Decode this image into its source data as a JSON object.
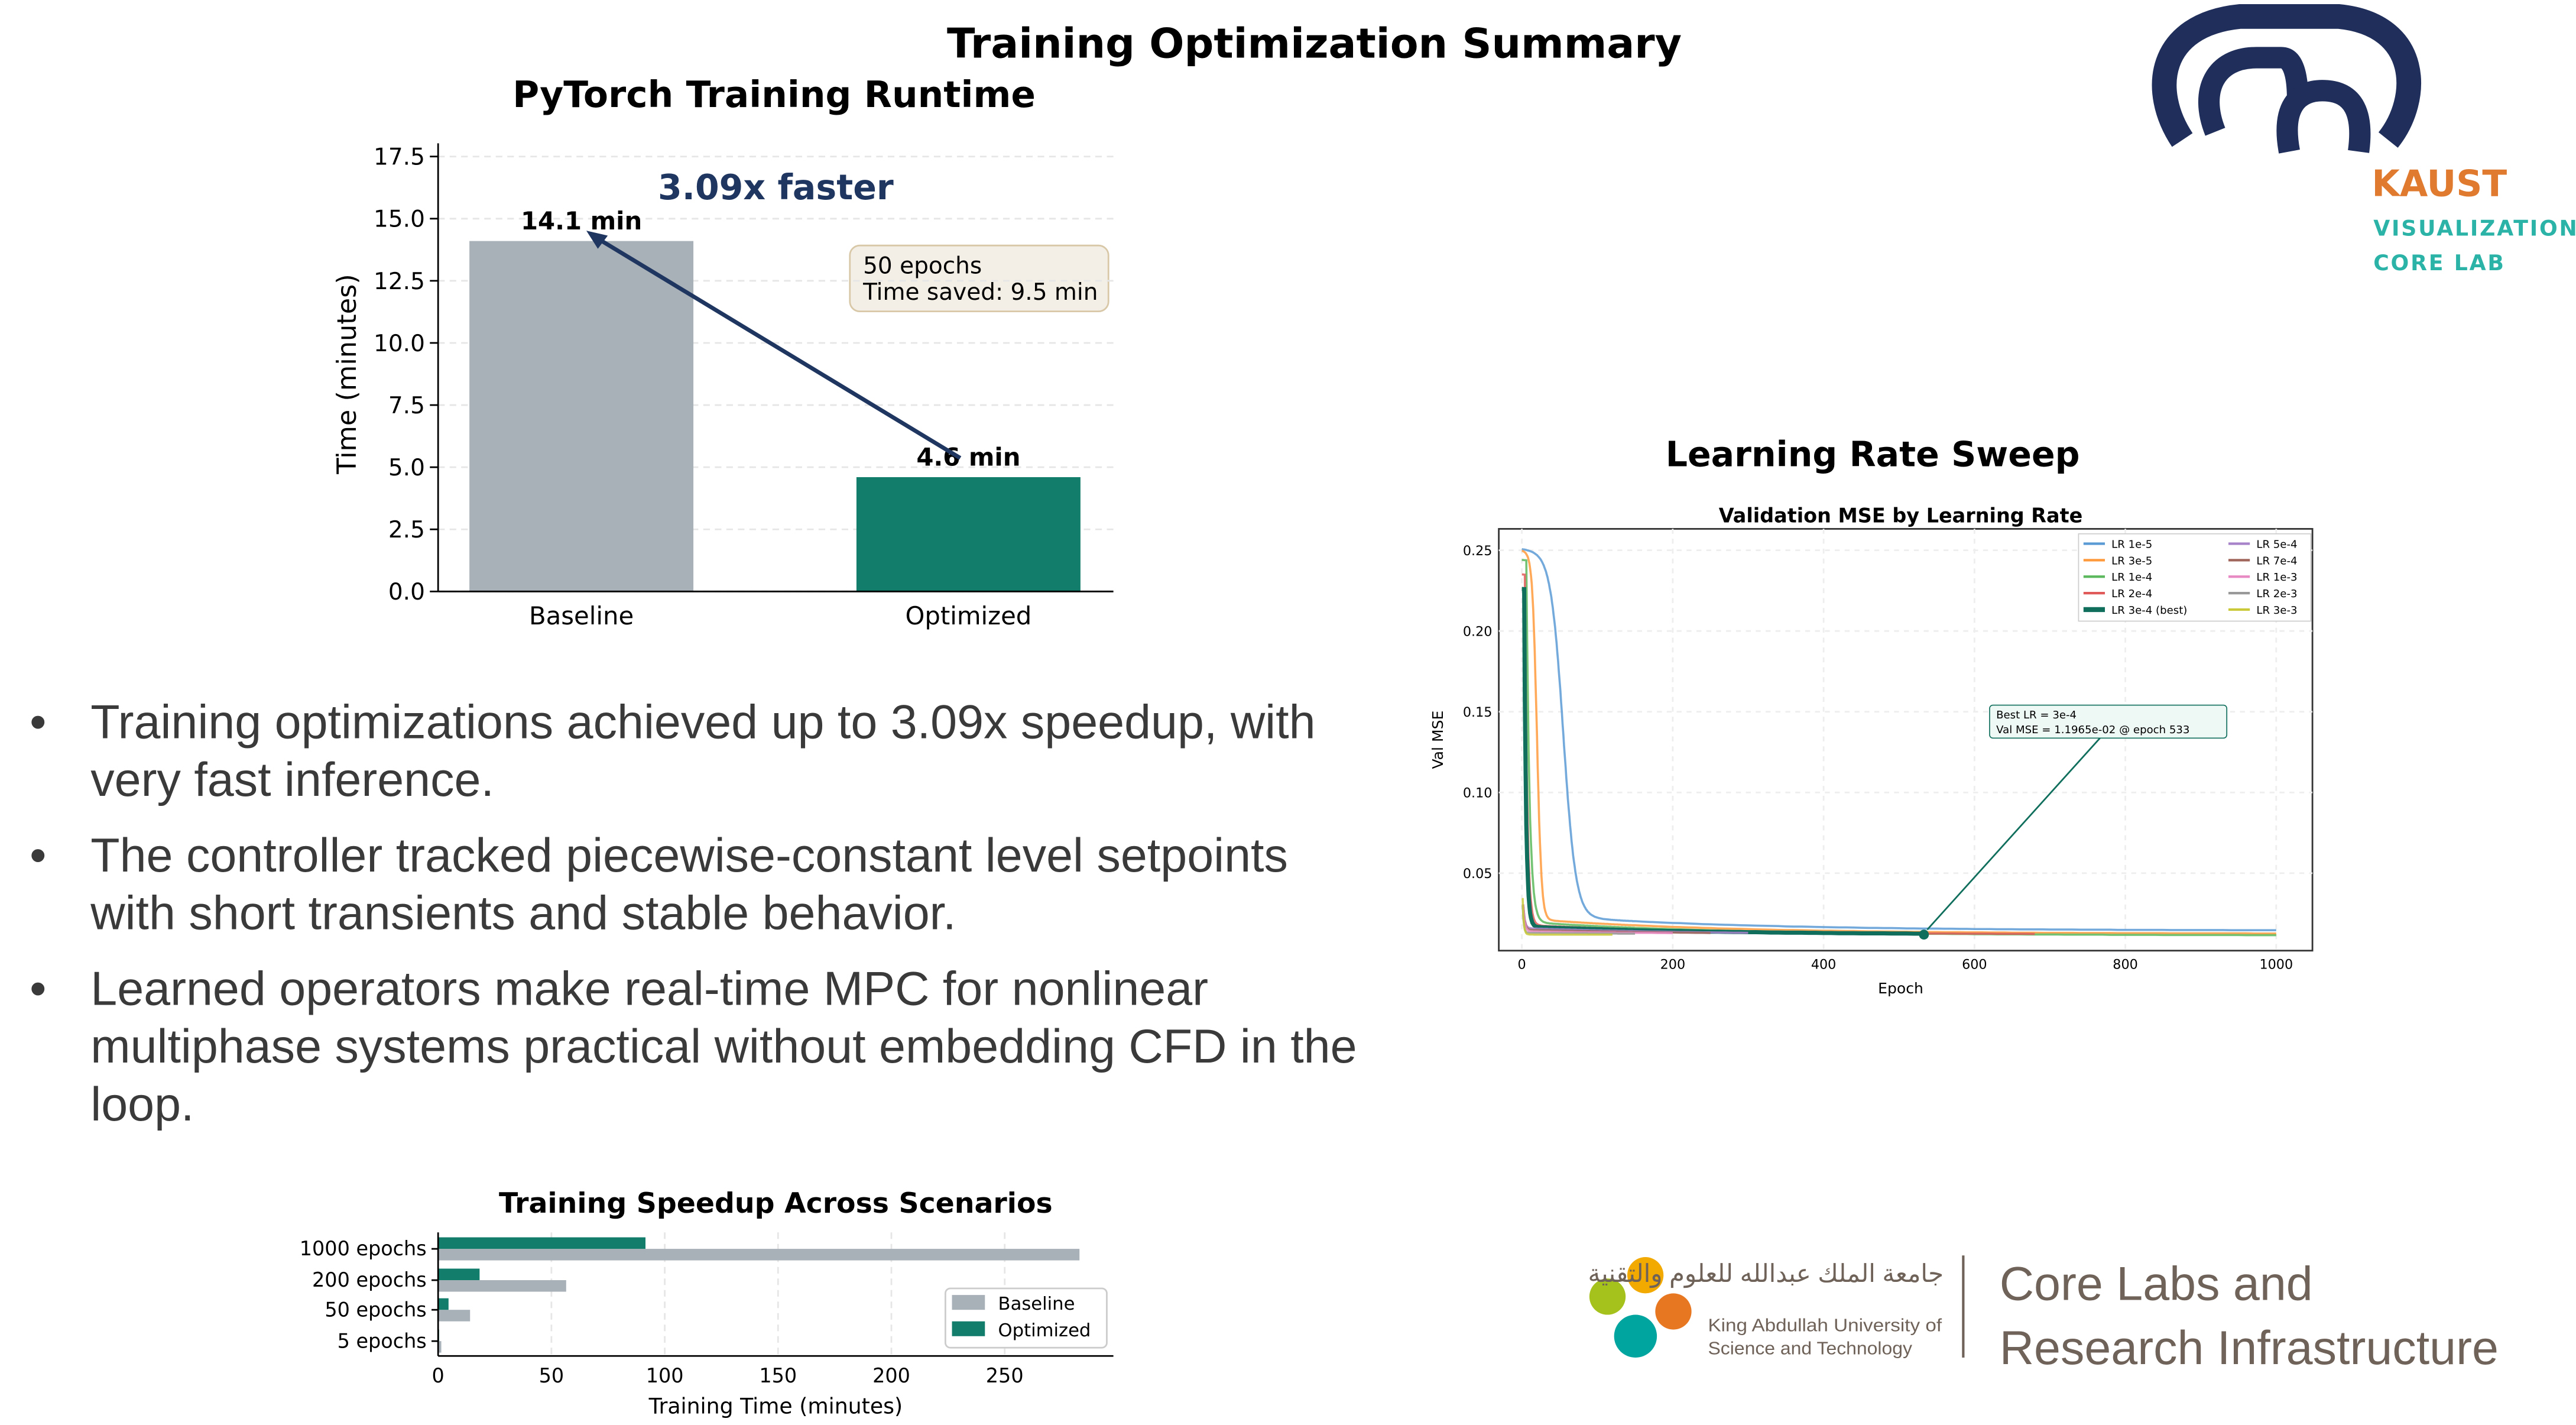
{
  "page_title": "Training Optimization Summary",
  "bullets": [
    "Training optimizations achieved up to 3.09x speedup, with very fast inference.",
    "The controller tracked piecewise-constant level setpoints with short transients and stable behavior.",
    "Learned operators make real-time MPC for nonlinear multiphase systems practical without embedding CFD in the loop."
  ],
  "logos": {
    "kaust_viz": [
      "KAUST",
      "VISUALIZATION",
      "CORE LAB"
    ],
    "kaust_university": {
      "arabic": "جامعة الملك عبدالله للعلوم والتقنية",
      "line1": "King Abdullah University of",
      "line2": "Science and Technology"
    },
    "core_labs": [
      "Core Labs and",
      "Research Infrastructure"
    ]
  },
  "section_lr_title": "Learning Rate Sweep",
  "colors": {
    "baseline": "#a8b0b8",
    "optimized": "#127d6b",
    "accent_navy": "#1f3660",
    "kaust_orange": "#e07a2e",
    "kaust_teal": "#2bb3a8"
  },
  "chart_data": [
    {
      "type": "bar",
      "title": "PyTorch Training Runtime",
      "categories": [
        "Baseline",
        "Optimized"
      ],
      "values": [
        14.1,
        4.6
      ],
      "data_labels": [
        "14.1 min",
        "4.6 min"
      ],
      "ylabel": "Time (minutes)",
      "xlabel": "",
      "ylim": [
        0,
        17.5
      ],
      "yticks": [
        "0.0",
        "2.5",
        "5.0",
        "7.5",
        "10.0",
        "12.5",
        "15.0",
        "17.5"
      ],
      "annotation": "3.09x faster",
      "info_box": [
        "50 epochs",
        "Time saved: 9.5 min"
      ],
      "grid": true
    },
    {
      "type": "line",
      "title": "Validation MSE by Learning Rate",
      "xlabel": "Epoch",
      "ylabel": "Val MSE",
      "xlim": [
        -30,
        1050
      ],
      "ylim": [
        0.002,
        0.263
      ],
      "xticks": [
        "0",
        "200",
        "400",
        "600",
        "800",
        "1000"
      ],
      "yticks": [
        "0.05",
        "0.10",
        "0.15",
        "0.20",
        "0.25"
      ],
      "legend": "top-right",
      "series": [
        {
          "name": "LR 1e-5",
          "color": "#5b9bd5",
          "start": 0.251,
          "knee": 55,
          "plateau": 0.025,
          "final": 0.0145,
          "end": 1000
        },
        {
          "name": "LR 3e-5",
          "color": "#ff9a3c",
          "start": 0.25,
          "knee": 20,
          "plateau": 0.022,
          "final": 0.0125,
          "end": 1000
        },
        {
          "name": "LR 1e-4",
          "color": "#5cb85c",
          "start": 0.244,
          "knee": 6,
          "plateau": 0.02,
          "final": 0.0115,
          "end": 1000
        },
        {
          "name": "LR 2e-4",
          "color": "#e05a5a",
          "start": 0.235,
          "knee": 4,
          "plateau": 0.018,
          "final": 0.012,
          "end": 685
        },
        {
          "name": "LR 3e-4 (best)",
          "color": "#0f6e5c",
          "start": 0.226,
          "knee": 3,
          "plateau": 0.017,
          "final": 0.01197,
          "end": 533,
          "best": true
        },
        {
          "name": "LR 5e-4",
          "color": "#a783c9",
          "start": 0.03,
          "knee": 2,
          "plateau": 0.016,
          "final": 0.0118,
          "end": 300
        },
        {
          "name": "LR 7e-4",
          "color": "#a0665c",
          "start": 0.03,
          "knee": 2,
          "plateau": 0.015,
          "final": 0.0118,
          "end": 250
        },
        {
          "name": "LR 1e-3",
          "color": "#e78ac3",
          "start": 0.03,
          "knee": 2,
          "plateau": 0.014,
          "final": 0.012,
          "end": 200
        },
        {
          "name": "LR 2e-3",
          "color": "#999999",
          "start": 0.03,
          "knee": 1,
          "plateau": 0.013,
          "final": 0.012,
          "end": 150
        },
        {
          "name": "LR 3e-3",
          "color": "#c9c93a",
          "start": 0.034,
          "knee": 1,
          "plateau": 0.012,
          "final": 0.0118,
          "end": 120
        }
      ],
      "annotation": [
        "Best LR = 3e-4",
        "Val MSE = 1.1965e-02 @ epoch 533"
      ],
      "best_point": {
        "x": 533,
        "y": 0.011965
      },
      "grid": true
    },
    {
      "type": "bar",
      "orientation": "horizontal",
      "title": "Training Speedup Across Scenarios",
      "categories": [
        "1000 epochs",
        "200 epochs",
        "50 epochs",
        "5 epochs"
      ],
      "series": [
        {
          "name": "Baseline",
          "values": [
            283,
            56.5,
            14.1,
            1.4
          ]
        },
        {
          "name": "Optimized",
          "values": [
            91.5,
            18.3,
            4.6,
            0.46
          ]
        }
      ],
      "xlabel": "Training Time (minutes)",
      "xticks": [
        "0",
        "50",
        "100",
        "150",
        "200",
        "250"
      ],
      "xlim": [
        0,
        297
      ],
      "legend": "bottom-right",
      "grid": true
    }
  ]
}
